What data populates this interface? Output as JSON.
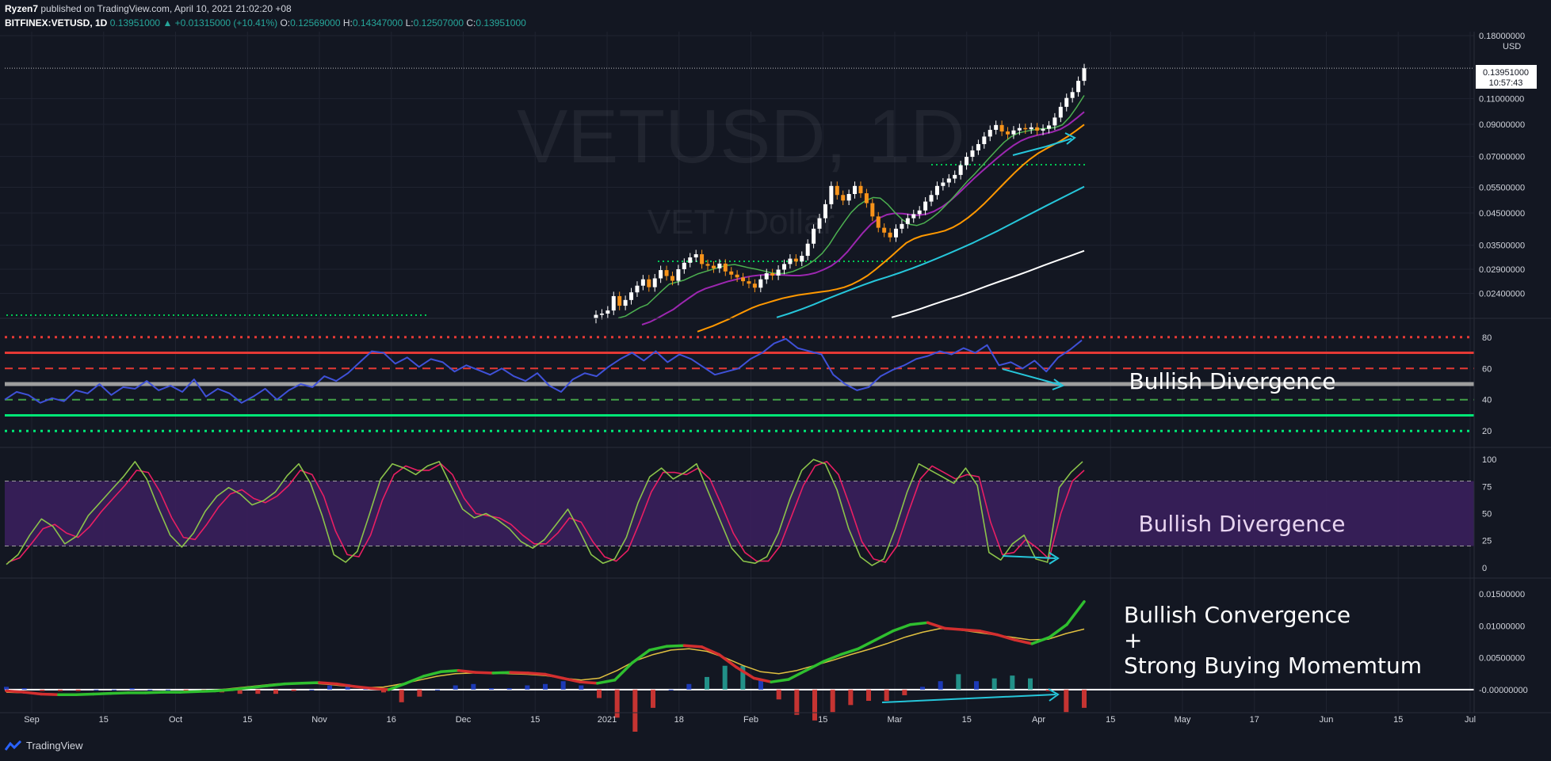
{
  "header": {
    "publisher": "Ryzen7",
    "published_text": "published on TradingView.com, April 10, 2021 21:02:20 +08",
    "symbol": "BITFINEX:VETUSD, 1D",
    "last": "0.13951000",
    "change": "▲ +0.01315000 (+10.41%)",
    "o_label": "O:",
    "o": "0.12569000",
    "h_label": "H:",
    "h": "0.14347000",
    "l_label": "L:",
    "l": "0.12507000",
    "c_label": "C:",
    "c": "0.13951000"
  },
  "watermark": {
    "title": "VETUSD, 1D",
    "subtitle": "VET / Dollar"
  },
  "price_label": {
    "value": "0.13951000",
    "countdown": "10:57:43"
  },
  "footer": {
    "brand": "TradingView"
  },
  "colors": {
    "background": "#131722",
    "grid": "#1f2330",
    "axis_text": "#d1d4dc",
    "candle_up": "#ffffff",
    "candle_down": "#f7931a",
    "ema_green": "#4caf50",
    "ema_purple": "#9c27b0",
    "ema_orange": "#ff9800",
    "ema_teal": "#26c6da",
    "ema_white": "#ffffff",
    "rsi_line": "#3f51d8",
    "stoch_k": "#8bc34a",
    "stoch_d": "#e91e63",
    "stoch_band": "#3a1f5c",
    "annotation_arrow": "#26c6da"
  },
  "chart_data": [
    {
      "type": "candlestick",
      "panel": "price",
      "scale": "log",
      "y_unit": "USD",
      "y_ticks": [
        "0.18000000",
        "0.11000000",
        "0.09000000",
        "0.07000000",
        "0.05500000",
        "0.04500000",
        "0.03500000",
        "0.02900000",
        "0.02400000"
      ],
      "y_range": [
        0.02,
        0.18
      ],
      "x_labels": [
        "Sep",
        "15",
        "Oct",
        "15",
        "Nov",
        "16",
        "Dec",
        "15",
        "2021",
        "18",
        "Feb",
        "15",
        "Mar",
        "15",
        "Apr",
        "15",
        "May",
        "17",
        "Jun",
        "15",
        "Jul"
      ],
      "last_price": 0.13951,
      "closes": [
        0.0203,
        0.0205,
        0.021,
        0.0235,
        0.0218,
        0.0228,
        0.0242,
        0.0255,
        0.0268,
        0.0252,
        0.027,
        0.0288,
        0.0275,
        0.0265,
        0.029,
        0.0305,
        0.0318,
        0.0326,
        0.0302,
        0.0298,
        0.0292,
        0.0303,
        0.0285,
        0.0278,
        0.0272,
        0.0264,
        0.0259,
        0.0251,
        0.0268,
        0.0281,
        0.0276,
        0.0289,
        0.0302,
        0.0315,
        0.0308,
        0.0322,
        0.0354,
        0.0398,
        0.0432,
        0.0482,
        0.0556,
        0.0518,
        0.0496,
        0.0522,
        0.0556,
        0.0525,
        0.0486,
        0.0438,
        0.0401,
        0.0386,
        0.0372,
        0.0398,
        0.0413,
        0.0432,
        0.0446,
        0.0459,
        0.0492,
        0.0518,
        0.0556,
        0.0571,
        0.0589,
        0.0606,
        0.0654,
        0.0698,
        0.0734,
        0.0771,
        0.0818,
        0.0862,
        0.0895,
        0.0851,
        0.0832,
        0.0858,
        0.0874,
        0.0866,
        0.0879,
        0.0857,
        0.0869,
        0.0892,
        0.0949,
        0.1032,
        0.1106,
        0.1158,
        0.1264,
        0.1395
      ],
      "ema_green": [
        0.0198,
        0.0201,
        0.0208,
        0.0215,
        0.022,
        0.0232,
        0.0245,
        0.0258,
        0.0262,
        0.0266,
        0.0273,
        0.028,
        0.0285,
        0.029,
        0.0295,
        0.0299,
        0.0301,
        0.0297,
        0.0293,
        0.029,
        0.0286,
        0.0282,
        0.028,
        0.0281,
        0.0285,
        0.0292,
        0.03,
        0.0312,
        0.0328,
        0.0352,
        0.0385,
        0.0418,
        0.0452,
        0.0478,
        0.0496,
        0.0508,
        0.0505,
        0.0482,
        0.0452,
        0.0428,
        0.0412,
        0.0408,
        0.0416,
        0.0432,
        0.0452,
        0.0478,
        0.0508,
        0.0542,
        0.0578,
        0.0612,
        0.0652,
        0.0694,
        0.0738,
        0.0782,
        0.0818,
        0.0842,
        0.0852,
        0.0862,
        0.0868,
        0.0872,
        0.0878,
        0.0896,
        0.0952,
        0.1032,
        0.1128
      ],
      "ema_purple": [
        0.0188,
        0.0192,
        0.0198,
        0.0205,
        0.0212,
        0.0222,
        0.0232,
        0.0242,
        0.0249,
        0.0254,
        0.0259,
        0.0264,
        0.0268,
        0.0272,
        0.0275,
        0.0277,
        0.0278,
        0.0278,
        0.0277,
        0.0276,
        0.0276,
        0.0278,
        0.0282,
        0.0289,
        0.0298,
        0.0312,
        0.0332,
        0.0358,
        0.0386,
        0.0412,
        0.0432,
        0.0444,
        0.0449,
        0.0448,
        0.0444,
        0.0442,
        0.0446,
        0.0456,
        0.0472,
        0.0494,
        0.0522,
        0.0554,
        0.0588,
        0.0622,
        0.0656,
        0.0692,
        0.0728,
        0.0762,
        0.0791,
        0.0812,
        0.0826,
        0.0836,
        0.0848,
        0.0866,
        0.0898,
        0.0942,
        0.0992
      ],
      "ema_orange": [
        0.0178,
        0.0182,
        0.0186,
        0.0191,
        0.0196,
        0.0202,
        0.0208,
        0.0214,
        0.0219,
        0.0223,
        0.0227,
        0.0231,
        0.0234,
        0.0237,
        0.0239,
        0.0241,
        0.0243,
        0.0245,
        0.0248,
        0.0252,
        0.0258,
        0.0266,
        0.0276,
        0.0289,
        0.0304,
        0.032,
        0.0338,
        0.0356,
        0.0368,
        0.0376,
        0.0381,
        0.0386,
        0.0392,
        0.0402,
        0.0416,
        0.0434,
        0.0456,
        0.0482,
        0.0512,
        0.0545,
        0.058,
        0.0616,
        0.0652,
        0.0686,
        0.0716,
        0.0742,
        0.0766,
        0.0792,
        0.0822,
        0.0858,
        0.0898
      ],
      "ema_teal": [
        0.0199,
        0.0205,
        0.0212,
        0.022,
        0.0229,
        0.0238,
        0.0247,
        0.0256,
        0.0265,
        0.0273,
        0.0282,
        0.0292,
        0.0303,
        0.0315,
        0.0328,
        0.0342,
        0.0357,
        0.0374,
        0.0392,
        0.0412,
        0.0433,
        0.0455,
        0.0478,
        0.0502,
        0.0527,
        0.0553
      ],
      "ema_white": [
        0.0199,
        0.0205,
        0.0212,
        0.022,
        0.0228,
        0.0236,
        0.0245,
        0.0255,
        0.0265,
        0.0275,
        0.0286,
        0.0298,
        0.031,
        0.0322,
        0.0335
      ]
    },
    {
      "type": "line",
      "panel": "rsi",
      "y_ticks": [
        80,
        60,
        40,
        20
      ],
      "y_range": [
        12,
        88
      ],
      "levels": [
        80,
        70,
        60,
        50,
        40,
        30,
        20
      ],
      "values": [
        40,
        45,
        43,
        38,
        41,
        39,
        46,
        44,
        50,
        43,
        48,
        47,
        52,
        46,
        49,
        45,
        53,
        42,
        47,
        44,
        38,
        42,
        47,
        40,
        46,
        50,
        48,
        55,
        52,
        57,
        64,
        71,
        70,
        63,
        67,
        61,
        66,
        64,
        58,
        62,
        59,
        56,
        60,
        55,
        52,
        57,
        49,
        45,
        53,
        57,
        55,
        61,
        66,
        70,
        65,
        71,
        64,
        69,
        66,
        61,
        56,
        58,
        60,
        66,
        70,
        76,
        79,
        73,
        71,
        69,
        56,
        50,
        46,
        48,
        55,
        59,
        62,
        66,
        68,
        71,
        69,
        73,
        70,
        75,
        62,
        64,
        60,
        65,
        58,
        67,
        72,
        78
      ],
      "annotation": "Bullish Divergence"
    },
    {
      "type": "line",
      "panel": "stoch_rsi",
      "y_ticks": [
        100,
        75,
        50,
        25,
        0
      ],
      "y_range": [
        -6,
        106
      ],
      "band": [
        20,
        80
      ],
      "series": [
        {
          "name": "",
          "values": [
            3,
            12,
            30,
            45,
            38,
            22,
            29,
            48,
            60,
            72,
            84,
            98,
            82,
            55,
            30,
            19,
            32,
            52,
            66,
            74,
            68,
            58,
            62,
            70,
            85,
            96,
            78,
            48,
            12,
            5,
            15,
            48,
            82,
            96,
            92,
            86,
            94,
            98,
            76,
            54,
            46,
            50,
            44,
            36,
            24,
            18,
            26,
            40,
            54,
            34,
            12,
            4,
            8,
            28,
            60,
            84,
            92,
            82,
            88,
            96,
            70,
            44,
            18,
            6,
            4,
            10,
            32,
            64,
            90,
            100,
            96,
            72,
            36,
            10,
            2,
            8,
            36,
            70,
            96,
            90,
            84,
            78,
            92,
            76,
            14,
            7,
            22,
            30,
            8,
            5,
            74,
            88,
            98
          ]
        },
        {
          "name": "",
          "values": [
            5,
            9,
            22,
            36,
            40,
            32,
            28,
            38,
            52,
            64,
            76,
            90,
            88,
            70,
            46,
            28,
            26,
            40,
            56,
            68,
            72,
            64,
            60,
            66,
            76,
            90,
            86,
            66,
            34,
            12,
            10,
            30,
            62,
            86,
            94,
            90,
            90,
            96,
            86,
            64,
            50,
            48,
            46,
            40,
            30,
            22,
            22,
            32,
            46,
            42,
            24,
            10,
            6,
            16,
            42,
            70,
            88,
            88,
            86,
            92,
            82,
            58,
            32,
            14,
            6,
            6,
            20,
            48,
            76,
            94,
            98,
            86,
            56,
            24,
            8,
            5,
            20,
            52,
            82,
            94,
            88,
            82,
            86,
            84,
            42,
            12,
            14,
            26,
            18,
            8,
            50,
            80,
            90
          ]
        }
      ],
      "annotation": "Bullish Divergence"
    },
    {
      "type": "line",
      "panel": "macd",
      "y_ticks": [
        "0.01500000",
        "0.01000000",
        "0.00500000",
        "-0.00000000"
      ],
      "y_range": [
        -0.003,
        0.0165
      ],
      "series": [
        {
          "name": "",
          "values": [
            -0.0002,
            -0.0004,
            -0.0007,
            -0.0008,
            -0.0008,
            -0.0007,
            -0.0006,
            -0.0005,
            -0.0005,
            -0.0004,
            -0.0004,
            -0.0003,
            -0.0002,
            0.0,
            0.0003,
            0.0006,
            0.0009,
            0.001,
            0.0011,
            0.0009,
            0.0005,
            0.0002,
            0.0,
            0.001,
            0.0021,
            0.0028,
            0.003,
            0.0027,
            0.0026,
            0.0027,
            0.0026,
            0.0024,
            0.0018,
            0.0012,
            0.001,
            0.0015,
            0.0042,
            0.0062,
            0.0068,
            0.0069,
            0.0067,
            0.0055,
            0.0035,
            0.0018,
            0.0012,
            0.0016,
            0.003,
            0.0044,
            0.0055,
            0.0064,
            0.0078,
            0.0092,
            0.0102,
            0.0105,
            0.0096,
            0.0094,
            0.0092,
            0.0086,
            0.0078,
            0.0072,
            0.0082,
            0.0102,
            0.0138
          ]
        },
        {
          "name": "",
          "values": [
            -0.0004,
            -0.0005,
            -0.0006,
            -0.0007,
            -0.0007,
            -0.0007,
            -0.0006,
            -0.0006,
            -0.0005,
            -0.0004,
            -0.0003,
            -0.0002,
            0.0,
            0.0003,
            0.0006,
            0.0009,
            0.001,
            0.001,
            0.0008,
            0.0005,
            0.0003,
            0.0004,
            0.0009,
            0.0015,
            0.0021,
            0.0025,
            0.0026,
            0.0026,
            0.0025,
            0.0024,
            0.0022,
            0.0018,
            0.0015,
            0.0018,
            0.003,
            0.0045,
            0.0055,
            0.0062,
            0.0064,
            0.006,
            0.005,
            0.0038,
            0.0028,
            0.0025,
            0.003,
            0.0038,
            0.0046,
            0.0055,
            0.0063,
            0.0072,
            0.0082,
            0.009,
            0.0096,
            0.0094,
            0.009,
            0.0086,
            0.0082,
            0.0078,
            0.0079,
            0.0088,
            0.0095
          ]
        }
      ],
      "annotation_lines": [
        "Bullish Convergence",
        "+",
        "Strong Buying Momemtum"
      ]
    }
  ]
}
